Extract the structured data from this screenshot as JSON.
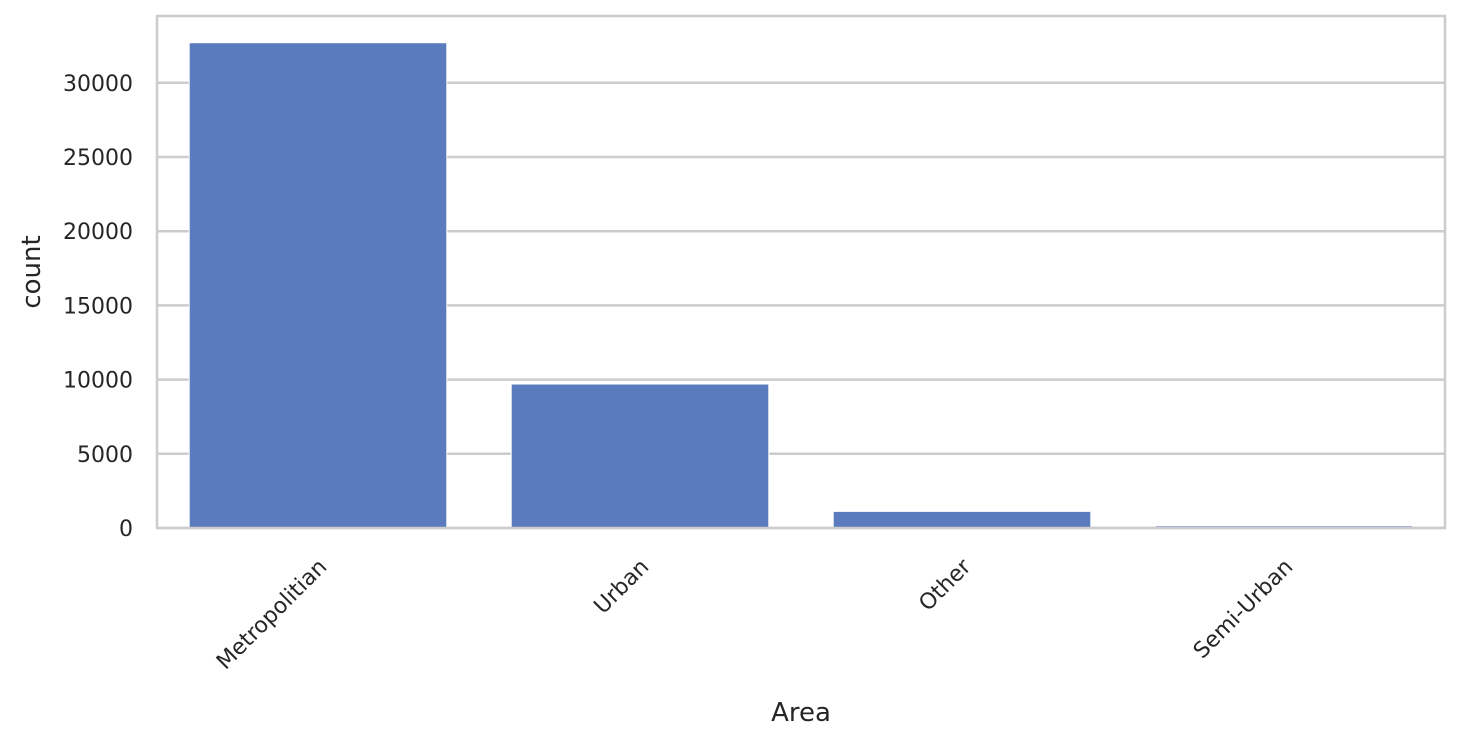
{
  "chart_data": {
    "type": "bar",
    "title": "",
    "xlabel": "Area",
    "ylabel": "count",
    "categories": [
      "Metropolitian",
      "Urban",
      "Other",
      "Semi-Urban"
    ],
    "values": [
      32700,
      9700,
      1120,
      150
    ],
    "ylim": [
      0,
      34500
    ],
    "yticks": [
      0,
      5000,
      10000,
      15000,
      20000,
      25000,
      30000
    ],
    "grid": true,
    "legend": "none",
    "bar_color": "#5a7bbe",
    "grid_color": "#cccccc",
    "text_color": "#262626"
  }
}
